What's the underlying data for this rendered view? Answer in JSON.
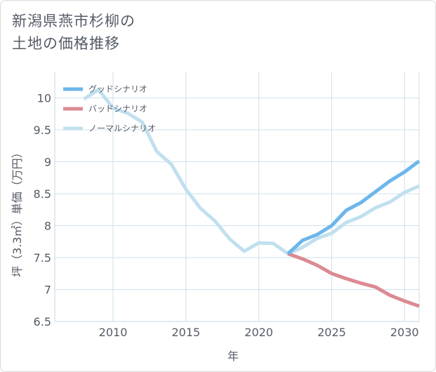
{
  "title_line1": "新潟県燕市杉柳の",
  "title_line2": "土地の価格推移",
  "chart_data": {
    "type": "line",
    "xlabel": "年",
    "ylabel": "坪（3.3㎡）単価（万円）",
    "xlim": [
      2006,
      2031
    ],
    "ylim": [
      6.5,
      10.4
    ],
    "x_ticks": [
      2010,
      2015,
      2020,
      2025,
      2030
    ],
    "y_ticks": [
      6.5,
      7,
      7.5,
      8,
      8.5,
      9,
      9.5,
      10
    ],
    "grid": true,
    "legend_position": "top-left",
    "series": [
      {
        "name": "グッドシナリオ",
        "color": "#6cb6ec",
        "x": [
          2022,
          2023,
          2024,
          2025,
          2026,
          2027,
          2028,
          2029,
          2030,
          2031
        ],
        "y": [
          7.56,
          7.77,
          7.86,
          8.0,
          8.24,
          8.36,
          8.53,
          8.7,
          8.84,
          9.01
        ]
      },
      {
        "name": "バッドシナリオ",
        "color": "#dc8a92",
        "x": [
          2022,
          2023,
          2024,
          2025,
          2026,
          2027,
          2028,
          2029,
          2030,
          2031
        ],
        "y": [
          7.56,
          7.48,
          7.38,
          7.25,
          7.17,
          7.1,
          7.04,
          6.91,
          6.82,
          6.74
        ]
      },
      {
        "name": "ノーマルシナリオ",
        "color": "#c1e0ef",
        "x": [
          2008,
          2009,
          2010,
          2011,
          2012,
          2013,
          2014,
          2015,
          2016,
          2017,
          2018,
          2019,
          2020,
          2021,
          2022,
          2023,
          2024,
          2025,
          2026,
          2027,
          2028,
          2029,
          2030,
          2031
        ],
        "y": [
          9.98,
          10.13,
          9.84,
          9.76,
          9.62,
          9.16,
          8.96,
          8.57,
          8.27,
          8.07,
          7.79,
          7.6,
          7.73,
          7.72,
          7.56,
          7.66,
          7.8,
          7.88,
          8.05,
          8.14,
          8.28,
          8.37,
          8.52,
          8.62
        ]
      }
    ]
  }
}
